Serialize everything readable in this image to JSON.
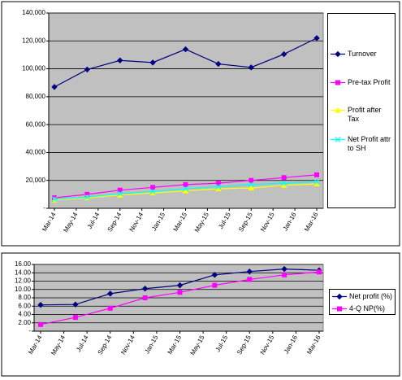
{
  "chart_data": [
    {
      "type": "line",
      "x": [
        "2014-03",
        "2014-06",
        "2014-09",
        "2014-12",
        "2015-03",
        "2015-06",
        "2015-09",
        "2015-12",
        "2016-03"
      ],
      "xticks": [
        {
          "value": "2014-03",
          "label": "Mar-14"
        },
        {
          "value": "2014-05",
          "label": "May-14"
        },
        {
          "value": "2014-07",
          "label": "Jul-14"
        },
        {
          "value": "2014-09",
          "label": "Sep-14"
        },
        {
          "value": "2014-11",
          "label": "Nov-14"
        },
        {
          "value": "2015-01",
          "label": "Jan-15"
        },
        {
          "value": "2015-03",
          "label": "Mar-15"
        },
        {
          "value": "2015-05",
          "label": "May-15"
        },
        {
          "value": "2015-07",
          "label": "Jul-15"
        },
        {
          "value": "2015-09",
          "label": "Sep-15"
        },
        {
          "value": "2015-11",
          "label": "Nov-15"
        },
        {
          "value": "2016-01",
          "label": "Jan-16"
        },
        {
          "value": "2016-03",
          "label": "Mar-16"
        }
      ],
      "ylim": [
        0,
        140000
      ],
      "yticks": [
        {
          "value": 0,
          "label": "-"
        },
        {
          "value": 20000,
          "label": "20,000"
        },
        {
          "value": 40000,
          "label": "40,000"
        },
        {
          "value": 60000,
          "label": "60,000"
        },
        {
          "value": 80000,
          "label": "80,000"
        },
        {
          "value": 100000,
          "label": "100,000"
        },
        {
          "value": 120000,
          "label": "120,000"
        },
        {
          "value": 140000,
          "label": "140,000"
        }
      ],
      "grid": true,
      "legend": "right",
      "series": [
        {
          "name": "Turnover",
          "color": "#000080",
          "marker": "diamond",
          "values": [
            87000,
            99500,
            106000,
            104500,
            114000,
            103500,
            101000,
            110500,
            122000
          ]
        },
        {
          "name": "Pre-tax Profit",
          "color": "#ff00ff",
          "marker": "square",
          "values": [
            7500,
            10000,
            13000,
            15000,
            17000,
            18000,
            20000,
            22000,
            24000
          ]
        },
        {
          "name": "Profit after Tax",
          "color": "#ffff00",
          "marker": "triangle",
          "values": [
            6000,
            7500,
            9500,
            11000,
            12500,
            14000,
            14500,
            16500,
            17500
          ]
        },
        {
          "name": "Net Profit attr to SH",
          "color": "#00ffff",
          "marker": "x",
          "values": [
            6500,
            8000,
            10500,
            12000,
            14000,
            15500,
            17000,
            18000,
            19000
          ]
        }
      ]
    },
    {
      "type": "line",
      "x": [
        "2014-03",
        "2014-06",
        "2014-09",
        "2014-12",
        "2015-03",
        "2015-06",
        "2015-09",
        "2015-12",
        "2016-03"
      ],
      "xticks": [
        {
          "value": "2014-03",
          "label": "Mar-14"
        },
        {
          "value": "2014-05",
          "label": "May-14"
        },
        {
          "value": "2014-07",
          "label": "Jul-14"
        },
        {
          "value": "2014-09",
          "label": "Sep-14"
        },
        {
          "value": "2014-11",
          "label": "Nov-14"
        },
        {
          "value": "2015-01",
          "label": "Jan-15"
        },
        {
          "value": "2015-03",
          "label": "Mar-15"
        },
        {
          "value": "2015-05",
          "label": "May-15"
        },
        {
          "value": "2015-07",
          "label": "Jul-15"
        },
        {
          "value": "2015-09",
          "label": "Sep-15"
        },
        {
          "value": "2015-11",
          "label": "Nov-15"
        },
        {
          "value": "2016-01",
          "label": "Jan-16"
        },
        {
          "value": "2016-03",
          "label": "Mar-16"
        }
      ],
      "ylim": [
        0,
        16
      ],
      "yticks": [
        {
          "value": 0,
          "label": "-"
        },
        {
          "value": 2,
          "label": "2.00"
        },
        {
          "value": 4,
          "label": "4.00"
        },
        {
          "value": 6,
          "label": "6.00"
        },
        {
          "value": 8,
          "label": "8.00"
        },
        {
          "value": 10,
          "label": "10.00"
        },
        {
          "value": 12,
          "label": "12.00"
        },
        {
          "value": 14,
          "label": "14.00"
        },
        {
          "value": 16,
          "label": "16.00"
        }
      ],
      "grid": true,
      "legend": "right",
      "series": [
        {
          "name": "Net profit (%)",
          "color": "#000080",
          "marker": "diamond",
          "values": [
            6.3,
            6.4,
            9.0,
            10.2,
            11.0,
            13.5,
            14.3,
            14.9,
            14.6
          ]
        },
        {
          "name": "4-Q NP(%)",
          "color": "#ff00ff",
          "marker": "square",
          "values": [
            1.6,
            3.3,
            5.5,
            8.0,
            9.3,
            11.0,
            12.4,
            13.5,
            14.2
          ]
        }
      ]
    }
  ]
}
